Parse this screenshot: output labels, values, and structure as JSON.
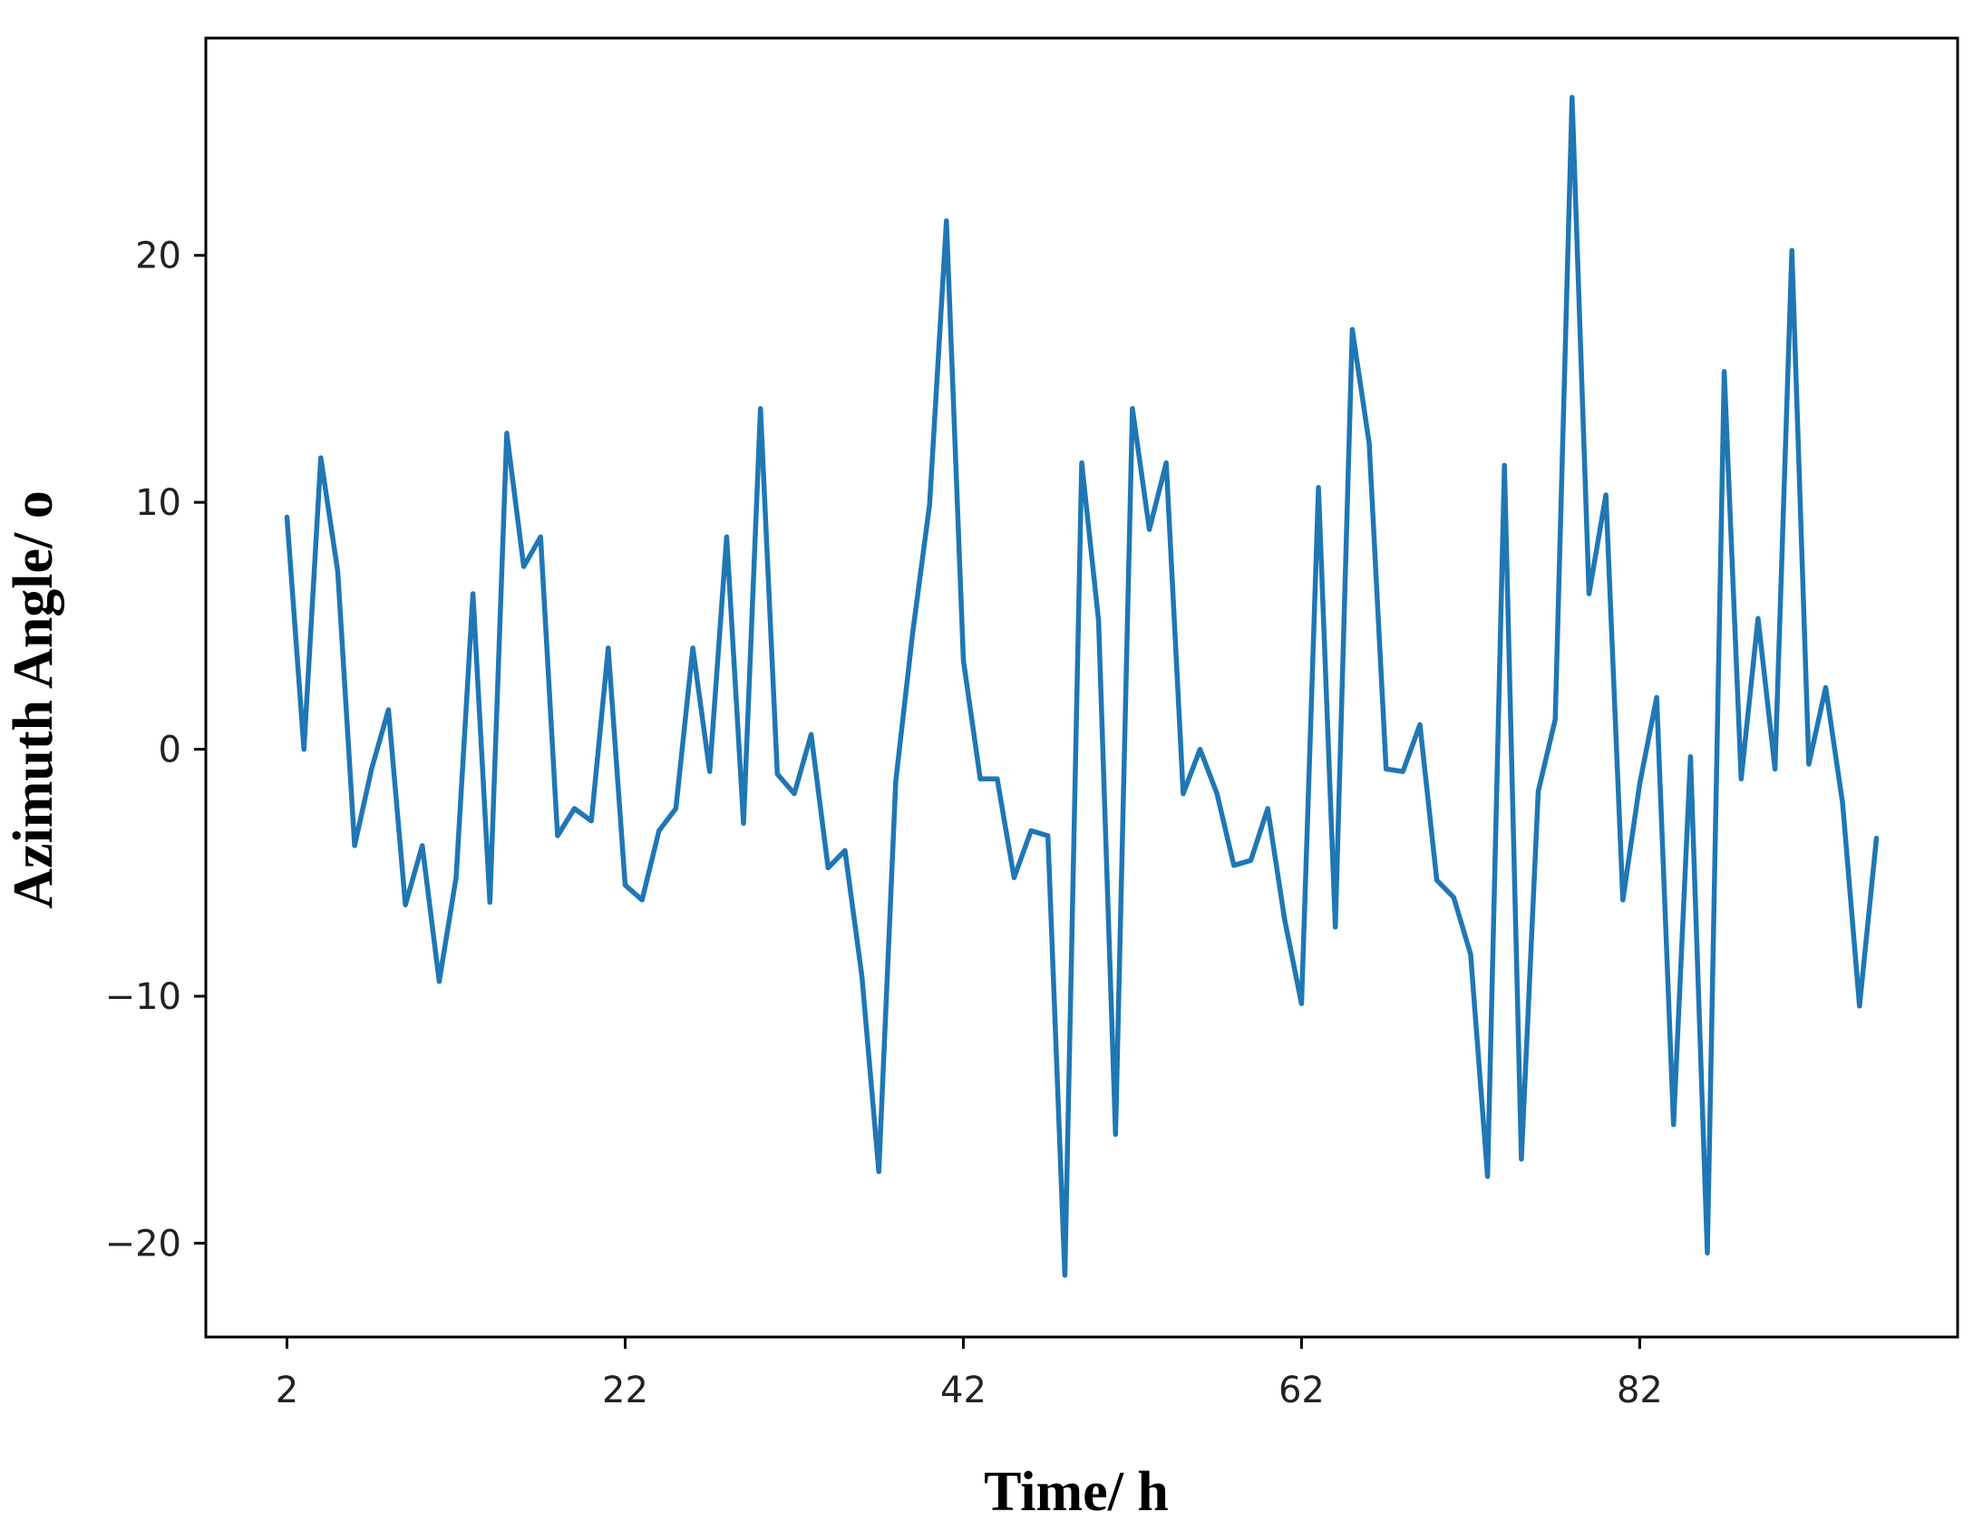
{
  "chart_data": {
    "type": "line",
    "title": "",
    "xlabel": "Time/ h",
    "ylabel": "Azimuth Angle/ o",
    "xlim": [
      -2.8,
      100.8
    ],
    "ylim": [
      -23.8,
      28.8
    ],
    "xticks": [
      2,
      22,
      42,
      62,
      82
    ],
    "yticks": [
      20,
      10,
      0,
      -10,
      -20
    ],
    "xtick_labels": [
      "2",
      "22",
      "42",
      "62",
      "82"
    ],
    "ytick_labels": [
      "20",
      "10",
      "0",
      "−10",
      "−20"
    ],
    "grid": false,
    "legend": "none",
    "colors": {
      "line": "#1f77b4",
      "frame": "#000000"
    },
    "series": [
      {
        "x": [
          2,
          3,
          4,
          5,
          6,
          7,
          8,
          9,
          10,
          11,
          12,
          13,
          14,
          15,
          16,
          17,
          18,
          19,
          20,
          21,
          22,
          23,
          24,
          25,
          26,
          27,
          28,
          29,
          30,
          31,
          32,
          33,
          34,
          35,
          36,
          37,
          38,
          39,
          40,
          41,
          42,
          43,
          44,
          45,
          46,
          47,
          48,
          49,
          50,
          51,
          52,
          53,
          54,
          55,
          56,
          57,
          58,
          59,
          60,
          61,
          62,
          63,
          64,
          65,
          66,
          67,
          68,
          69,
          70,
          71,
          72,
          73,
          74,
          75,
          76,
          77,
          78,
          79,
          80,
          81,
          82,
          83,
          84,
          85,
          86,
          87,
          88,
          89,
          90,
          91,
          92,
          93,
          94,
          95,
          96
        ],
        "values": [
          9.4,
          0,
          11.8,
          7.2,
          -3.9,
          -0.8,
          1.6,
          -6.3,
          -3.9,
          -9.4,
          -5.2,
          6.3,
          -6.2,
          12.8,
          7.4,
          8.6,
          -3.5,
          -2.4,
          -2.9,
          4.1,
          -5.5,
          -6.1,
          -3.3,
          -2.4,
          4.1,
          -0.9,
          8.6,
          -3,
          13.8,
          -1,
          -1.8,
          0.6,
          -4.8,
          -4.1,
          -9.2,
          -17.1,
          -1.3,
          4.7,
          9.9,
          21.4,
          3.6,
          -1.2,
          -1.2,
          -5.2,
          -3.3,
          -3.5,
          -21.3,
          11.6,
          5.2,
          -15.6,
          13.8,
          8.9,
          11.6,
          -1.8,
          0,
          -1.8,
          -4.7,
          -4.5,
          -2.4,
          -6.9,
          -10.3,
          10.6,
          -7.2,
          17,
          12.4,
          -0.8,
          -0.9,
          1,
          -5.3,
          -6,
          -8.3,
          -17.3,
          11.5,
          -16.6,
          -1.7,
          1.2,
          26.4,
          6.3,
          10.3,
          -6.1,
          -1.4,
          2.1,
          -15.2,
          -0.3,
          -20.4,
          15.3,
          -1.2,
          5.3,
          -0.8,
          20.2,
          -0.6,
          2.5,
          -2.2,
          -10.4,
          -3.6
        ]
      }
    ]
  }
}
